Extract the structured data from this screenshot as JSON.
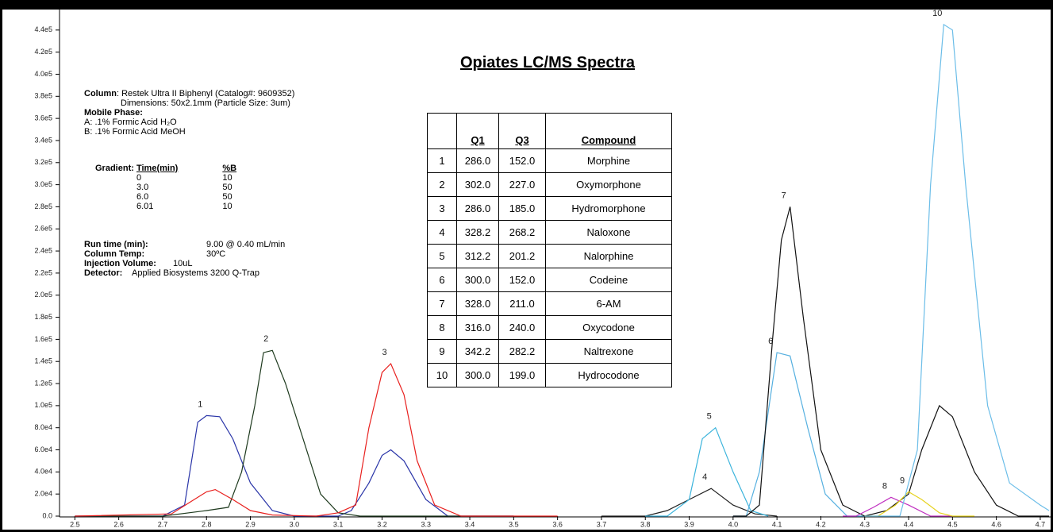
{
  "chart_data": {
    "type": "line",
    "title": "Opiates LC/MS Spectra",
    "xlim": [
      2.465,
      4.72
    ],
    "ylim": [
      0,
      460000
    ],
    "xticks": [
      2.5,
      2.6,
      2.7,
      2.8,
      2.9,
      {
        "value": 3,
        "label": "3.0"
      },
      3.1,
      3.2,
      3.3,
      3.4,
      3.5,
      3.6,
      3.7,
      3.8,
      3.9,
      {
        "value": 4,
        "label": "4.0"
      },
      4.1,
      4.2,
      4.3,
      4.4,
      4.5,
      4.6,
      4.7
    ],
    "yticks": [
      {
        "value": 0,
        "label": "0.0"
      },
      {
        "value": 20000,
        "label": "2.0e4"
      },
      {
        "value": 40000,
        "label": "4.0e4"
      },
      {
        "value": 60000,
        "label": "6.0e4"
      },
      {
        "value": 80000,
        "label": "8.0e4"
      },
      {
        "value": 100000,
        "label": "1.0e5"
      },
      {
        "value": 120000,
        "label": "1.2e5"
      },
      {
        "value": 140000,
        "label": "1.4e5"
      },
      {
        "value": 160000,
        "label": "1.6e5"
      },
      {
        "value": 180000,
        "label": "1.8e5"
      },
      {
        "value": 200000,
        "label": "2.0e5"
      },
      {
        "value": 220000,
        "label": "2.2e5"
      },
      {
        "value": 240000,
        "label": "2.4e5"
      },
      {
        "value": 260000,
        "label": "2.6e5"
      },
      {
        "value": 280000,
        "label": "2.8e5"
      },
      {
        "value": 300000,
        "label": "3.0e5"
      },
      {
        "value": 320000,
        "label": "3.2e5"
      },
      {
        "value": 340000,
        "label": "3.4e5"
      },
      {
        "value": 360000,
        "label": "3.6e5"
      },
      {
        "value": 380000,
        "label": "3.8e5"
      },
      {
        "value": 400000,
        "label": "4.0e5"
      },
      {
        "value": 420000,
        "label": "4.2e5"
      },
      {
        "value": 440000,
        "label": "4.4e5"
      }
    ],
    "series": [
      {
        "name": "1",
        "color": "#2a35a8",
        "x": [
          2.5,
          2.7,
          2.75,
          2.78,
          2.8,
          2.83,
          2.86,
          2.9,
          2.95,
          3.0,
          3.1,
          3.13,
          3.17,
          3.2,
          3.22,
          3.25,
          3.3,
          3.35,
          3.5
        ],
        "values": [
          0,
          0,
          10000,
          85000,
          91000,
          90000,
          70000,
          30000,
          5000,
          0,
          0,
          5000,
          30000,
          55000,
          60000,
          50000,
          15000,
          0,
          0
        ]
      },
      {
        "name": "2",
        "color": "#1e3a1e",
        "x": [
          2.5,
          2.7,
          2.8,
          2.85,
          2.88,
          2.91,
          2.93,
          2.95,
          2.98,
          3.02,
          3.06,
          3.1,
          3.15,
          3.5
        ],
        "values": [
          0,
          0,
          5000,
          8000,
          40000,
          100000,
          148000,
          150000,
          120000,
          70000,
          20000,
          3000,
          0,
          0
        ]
      },
      {
        "name": "3",
        "color": "#e8201e",
        "x": [
          2.5,
          2.72,
          2.76,
          2.8,
          2.82,
          2.86,
          2.9,
          2.95,
          3.05,
          3.1,
          3.14,
          3.17,
          3.2,
          3.22,
          3.25,
          3.28,
          3.32,
          3.38,
          3.6
        ],
        "values": [
          0,
          2000,
          12000,
          22000,
          24000,
          15000,
          5000,
          1000,
          0,
          3000,
          10000,
          80000,
          130000,
          138000,
          110000,
          50000,
          10000,
          0,
          0
        ]
      },
      {
        "name": "4",
        "color": "#222222",
        "x": [
          3.7,
          3.8,
          3.85,
          3.9,
          3.95,
          4.0,
          4.05,
          4.1
        ],
        "values": [
          0,
          0,
          5000,
          15000,
          25000,
          10000,
          2000,
          0
        ]
      },
      {
        "name": "5",
        "color": "#3cb4dc",
        "x": [
          3.8,
          3.85,
          3.9,
          3.93,
          3.96,
          4.0,
          4.04,
          4.08
        ],
        "values": [
          0,
          0,
          15000,
          70000,
          80000,
          40000,
          5000,
          0
        ]
      },
      {
        "name": "6",
        "color": "#56b0e0",
        "x": [
          4.0,
          4.03,
          4.06,
          4.1,
          4.13,
          4.17,
          4.21,
          4.26,
          4.3
        ],
        "values": [
          0,
          0,
          40000,
          148000,
          145000,
          80000,
          20000,
          0,
          0
        ]
      },
      {
        "name": "7",
        "color": "#111111",
        "x": [
          4.0,
          4.03,
          4.06,
          4.09,
          4.11,
          4.13,
          4.16,
          4.2,
          4.25,
          4.3,
          4.35,
          4.4,
          4.43,
          4.47,
          4.5,
          4.55,
          4.6,
          4.65,
          4.72
        ],
        "values": [
          0,
          0,
          10000,
          160000,
          250000,
          280000,
          180000,
          60000,
          10000,
          0,
          5000,
          20000,
          60000,
          100000,
          90000,
          40000,
          10000,
          0,
          0
        ]
      },
      {
        "name": "8",
        "color": "#c030c0",
        "x": [
          4.25,
          4.28,
          4.32,
          4.36,
          4.4,
          4.45,
          4.5
        ],
        "values": [
          0,
          0,
          8000,
          17000,
          10000,
          0,
          0
        ]
      },
      {
        "name": "9",
        "color": "#e6d21e",
        "x": [
          4.3,
          4.33,
          4.37,
          4.4,
          4.43,
          4.47,
          4.5,
          4.55
        ],
        "values": [
          0,
          0,
          10000,
          22000,
          15000,
          3000,
          0,
          0
        ]
      },
      {
        "name": "10",
        "color": "#6bbde8",
        "x": [
          4.3,
          4.38,
          4.42,
          4.45,
          4.48,
          4.5,
          4.53,
          4.58,
          4.63,
          4.7,
          4.72
        ],
        "values": [
          0,
          0,
          60000,
          300000,
          445000,
          440000,
          300000,
          100000,
          30000,
          10000,
          5000
        ]
      }
    ],
    "table": {
      "columns": [
        "Q1",
        "Q3",
        "Compound"
      ],
      "rows": [
        [
          "1",
          "286.0",
          "152.0",
          "Morphine"
        ],
        [
          "2",
          "302.0",
          "227.0",
          "Oxymorphone"
        ],
        [
          "3",
          "286.0",
          "185.0",
          "Hydromorphone"
        ],
        [
          "4",
          "328.2",
          "268.2",
          "Naloxone"
        ],
        [
          "5",
          "312.2",
          "201.2",
          "Nalorphine"
        ],
        [
          "6",
          "300.0",
          "152.0",
          "Codeine"
        ],
        [
          "7",
          "328.0",
          "211.0",
          "6-AM"
        ],
        [
          "8",
          "316.0",
          "240.0",
          "Oxycodone"
        ],
        [
          "9",
          "342.2",
          "282.2",
          "Naltrexone"
        ],
        [
          "10",
          "300.0",
          "199.0",
          "Hydrocodone"
        ]
      ]
    },
    "method": {
      "column_label": "Column",
      "column": ": Restek Ultra II Biphenyl (Catalog#:  9609352)",
      "dimensions": "Dimensions: 50x2.1mm (Particle Size: 3um)",
      "mobile_label": "Mobile Phase:",
      "mobile_a": "A: .1% Formic Acid H₂O",
      "mobile_b": "B: .1% Formic Acid MeOH",
      "gradient_label": "Gradient:",
      "gradient_columns": [
        "Time(min)",
        "%B"
      ],
      "gradient_rows": [
        [
          "0",
          "10"
        ],
        [
          "3.0",
          "50"
        ],
        [
          "6.0",
          "50"
        ],
        [
          "6.01",
          "10"
        ]
      ],
      "run_time_label": "Run time (min):",
      "run_time": "9.00 @ 0.40 mL/min",
      "temp_label": "Column Temp:",
      "temp": "30ºC",
      "injection_label": "Injection Volume:",
      "injection": "10uL",
      "detector_label": "Detector:",
      "detector": "Applied Biosystems 3200 Q-Trap"
    }
  }
}
